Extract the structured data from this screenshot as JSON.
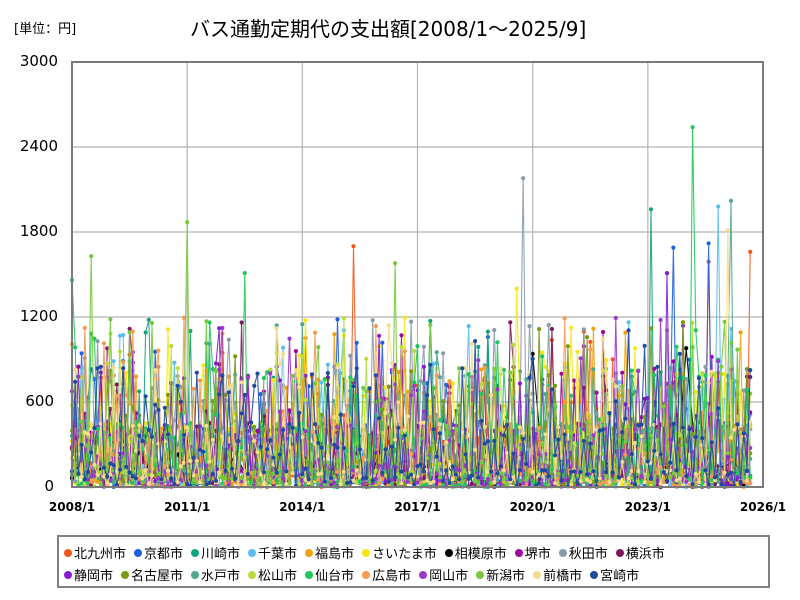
{
  "header": {
    "unit_label": "[単位：円]",
    "title": "バス通勤定期代の支出額[2008/1～2025/9]"
  },
  "axes": {
    "y_ticks": [
      "3000",
      "2400",
      "1800",
      "1200",
      "600",
      "0"
    ],
    "x_ticks": [
      "2008/1",
      "2011/1",
      "2014/1",
      "2017/1",
      "2020/1",
      "2023/1",
      "2026/1"
    ]
  },
  "legend": {
    "row1": [
      {
        "label": "北九州市",
        "color": "#f0561e"
      },
      {
        "label": "京都市",
        "color": "#1f5fe0"
      },
      {
        "label": "川崎市",
        "color": "#14a37f"
      },
      {
        "label": "千葉市",
        "color": "#5bbcf0"
      },
      {
        "label": "福島市",
        "color": "#f0a10f"
      },
      {
        "label": "さいたま市",
        "color": "#f5e614"
      },
      {
        "label": "相模原市",
        "color": "#000000"
      },
      {
        "label": "堺市",
        "color": "#9a0aa0"
      },
      {
        "label": "秋田市",
        "color": "#8a9aa8"
      },
      {
        "label": "横浜市",
        "color": "#7d1a5e"
      }
    ],
    "row2": [
      {
        "label": "静岡市",
        "color": "#8a1ad6"
      },
      {
        "label": "名古屋市",
        "color": "#7a9a14"
      },
      {
        "label": "水戸市",
        "color": "#4fa88a"
      },
      {
        "label": "松山市",
        "color": "#b8dc3c"
      },
      {
        "label": "仙台市",
        "color": "#1ec85a"
      },
      {
        "label": "広島市",
        "color": "#f59a50"
      },
      {
        "label": "岡山市",
        "color": "#9a3ac8"
      },
      {
        "label": "新潟市",
        "color": "#78c83c"
      },
      {
        "label": "前橋市",
        "color": "#f5dc8c"
      },
      {
        "label": "宮崎市",
        "color": "#1f4aa0"
      }
    ]
  },
  "chart_data": {
    "type": "line",
    "title": "バス通勤定期代の支出額[2008/1～2025/9]",
    "xlabel": "",
    "ylabel": "[単位：円]",
    "ylim": [
      0,
      3000
    ],
    "xlim": [
      "2008/1",
      "2026/1"
    ],
    "y_ticks": [
      0,
      600,
      1200,
      1800,
      2400,
      3000
    ],
    "x_ticks": [
      "2008/1",
      "2011/1",
      "2014/1",
      "2017/1",
      "2020/1",
      "2023/1",
      "2026/1"
    ],
    "grid": true,
    "legend_position": "bottom",
    "series_names": [
      "北九州市",
      "京都市",
      "川崎市",
      "千葉市",
      "福島市",
      "さいたま市",
      "相模原市",
      "堺市",
      "秋田市",
      "横浜市",
      "静岡市",
      "名古屋市",
      "水戸市",
      "松山市",
      "仙台市",
      "広島市",
      "岡山市",
      "新潟市",
      "前橋市",
      "宮崎市"
    ],
    "notable_peaks": [
      {
        "series": "仙台市",
        "x": "2024/3",
        "y": 2540
      },
      {
        "series": "秋田市",
        "x": "2019/10",
        "y": 2180
      },
      {
        "series": "水戸市",
        "x": "2025/3",
        "y": 2020
      },
      {
        "series": "千葉市",
        "x": "2024/11",
        "y": 1980
      },
      {
        "series": "川崎市",
        "x": "2023/2",
        "y": 1960
      },
      {
        "series": "新潟市",
        "x": "2011/1",
        "y": 1870
      },
      {
        "series": "前橋市",
        "x": "2025/2",
        "y": 1810
      },
      {
        "series": "京都市",
        "x": "2024/8",
        "y": 1720
      },
      {
        "series": "北九州市",
        "x": "2015/5",
        "y": 1700
      },
      {
        "series": "京都市",
        "x": "2023/9",
        "y": 1690
      },
      {
        "series": "北九州市",
        "x": "2025/9",
        "y": 1660
      },
      {
        "series": "新潟市",
        "x": "2008/7",
        "y": 1630
      },
      {
        "series": "北九州市",
        "x": "2024/8",
        "y": 1590
      },
      {
        "series": "新潟市",
        "x": "2016/6",
        "y": 1580
      },
      {
        "series": "静岡市",
        "x": "2023/7",
        "y": 1510
      },
      {
        "series": "仙台市",
        "x": "2012/7",
        "y": 1510
      },
      {
        "series": "さいたま市",
        "x": "2019/8",
        "y": 1400
      },
      {
        "series": "仙台市",
        "x": "2008/1",
        "y": 1460
      },
      {
        "series": "相模原市",
        "x": "2024/1",
        "y": 980
      },
      {
        "series": "相模原市",
        "x": "2020/1",
        "y": 940
      }
    ],
    "note": "20 monthly series from 2008/1 to 2025/9; most values fluctuate between 0 and ~1200 yen with occasional spikes."
  }
}
